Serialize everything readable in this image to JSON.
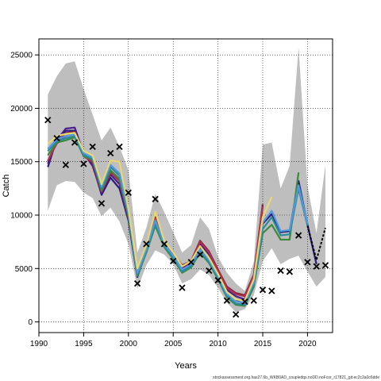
{
  "chart_data": {
    "type": "line",
    "xlabel": "Years",
    "ylabel": "Catch",
    "xlim": [
      1990,
      2022.8
    ],
    "ylim": [
      -1000,
      26500
    ],
    "x_ticks": [
      1990,
      1995,
      2000,
      2005,
      2010,
      2015,
      2020
    ],
    "y_ticks": [
      0,
      5000,
      10000,
      15000,
      20000,
      25000
    ],
    "grid": true,
    "footer": "stockassessment.org.has27.6b_WKB0AD_coupledqs.noDD.noFcor_r17821_git:ec2c2a0c6dde",
    "band": {
      "color": "#bebebe",
      "x": [
        1991,
        1992,
        1993,
        1994,
        1995,
        1996,
        1997,
        1998,
        1999,
        2000,
        2001,
        2002,
        2003,
        2004,
        2005,
        2006,
        2007,
        2008,
        2009,
        2010,
        2011,
        2012,
        2013,
        2014,
        2015,
        2016,
        2017,
        2018,
        2019,
        2020,
        2021,
        2022
      ],
      "upper": [
        21300,
        23000,
        24200,
        24400,
        21800,
        19400,
        17000,
        18200,
        16400,
        14200,
        6500,
        8800,
        12000,
        10300,
        8400,
        6500,
        7200,
        9800,
        8700,
        6100,
        4600,
        3600,
        2900,
        5600,
        16600,
        16800,
        12500,
        14600,
        25700,
        12700,
        8300,
        14700
      ],
      "lower": [
        10400,
        12800,
        13200,
        13100,
        12100,
        11600,
        9900,
        10700,
        9400,
        7300,
        3100,
        5300,
        6700,
        6300,
        5400,
        3600,
        4000,
        4900,
        4400,
        3200,
        1800,
        900,
        1200,
        2500,
        5700,
        6900,
        5400,
        5900,
        6200,
        4700,
        3300,
        4200
      ]
    },
    "series": [
      {
        "color": "#000000",
        "dashed": true,
        "x": [
          2020,
          2021,
          2022
        ],
        "values": [
          9000,
          5800,
          8800
        ]
      },
      {
        "color": "#2a1a7a",
        "x": [
          1991,
          1992,
          1993,
          1994,
          1995,
          1996,
          1997,
          1998,
          1999,
          2000,
          2001,
          2002,
          2003,
          2004,
          2005,
          2006,
          2007,
          2008,
          2009,
          2010,
          2011,
          2012,
          2013,
          2014,
          2015,
          2016,
          2017,
          2018,
          2019,
          2020,
          2021
        ],
        "values": [
          14500,
          17100,
          17900,
          17900,
          15700,
          14800,
          11900,
          13500,
          12500,
          9500,
          4200,
          6700,
          9100,
          7100,
          6000,
          4800,
          5300,
          6900,
          5800,
          4300,
          2700,
          2000,
          1700,
          3700,
          9200,
          10100,
          8400,
          8500,
          13200,
          9100,
          5400
        ]
      },
      {
        "color": "#4a1f8a",
        "x": [
          1991,
          1992,
          1993,
          1994,
          1995,
          1996,
          1997,
          1998,
          1999,
          2000,
          2001,
          2002,
          2003,
          2004,
          2005,
          2006,
          2007,
          2008,
          2009,
          2010,
          2011,
          2012,
          2013,
          2014,
          2015
        ],
        "values": [
          14800,
          17000,
          18100,
          18200,
          15800,
          14600,
          12100,
          13800,
          12900,
          9700,
          4400,
          6900,
          9500,
          7300,
          6200,
          5100,
          5500,
          7300,
          6300,
          4600,
          3000,
          2400,
          2100,
          4100,
          11000
        ]
      },
      {
        "color": "#7a1f3a",
        "x": [
          1991,
          1992,
          1993,
          1994,
          1995,
          1996,
          1997,
          1998,
          1999,
          2000,
          2001,
          2002,
          2003,
          2004,
          2005,
          2006,
          2007,
          2008,
          2009,
          2010,
          2011,
          2012,
          2013,
          2014,
          2015
        ],
        "values": [
          15000,
          16900,
          17700,
          17800,
          15600,
          14900,
          12300,
          14100,
          13300,
          9900,
          4600,
          7000,
          9800,
          7500,
          6400,
          5300,
          5700,
          7600,
          6600,
          4900,
          3300,
          2700,
          2500,
          4400,
          11000
        ]
      },
      {
        "color": "#b03050",
        "x": [
          1991,
          1992,
          1993,
          1994,
          1995,
          1996,
          1997,
          1998,
          1999,
          2000,
          2001,
          2002,
          2003,
          2004,
          2005,
          2006,
          2007,
          2008,
          2009,
          2010,
          2011,
          2012,
          2013,
          2014,
          2015
        ],
        "values": [
          15100,
          16700,
          17400,
          17600,
          15500,
          15000,
          12200,
          14000,
          13200,
          9800,
          4500,
          6800,
          9700,
          7400,
          6300,
          5200,
          5600,
          7500,
          6500,
          4800,
          3200,
          2600,
          2400,
          4300,
          10800
        ]
      },
      {
        "color": "#3a8a3a",
        "x": [
          1991,
          1992,
          1993,
          1994,
          1995,
          1996,
          1997,
          1998,
          1999,
          2000,
          2001,
          2002,
          2003,
          2004,
          2005,
          2006,
          2007,
          2008,
          2009,
          2010,
          2011,
          2012,
          2013,
          2014,
          2015,
          2016,
          2017,
          2018,
          2019
        ],
        "values": [
          15600,
          16800,
          17000,
          17300,
          15500,
          15200,
          12300,
          14200,
          13400,
          9900,
          4300,
          6500,
          9000,
          7000,
          5900,
          4600,
          5100,
          6500,
          5500,
          4000,
          2300,
          1600,
          1500,
          3300,
          8300,
          9100,
          7700,
          7700,
          14000
        ]
      },
      {
        "color": "#2a8a9a",
        "x": [
          1991,
          1992,
          1993,
          1994,
          1995,
          1996,
          1997,
          1998,
          1999,
          2000,
          2001,
          2002,
          2003,
          2004,
          2005,
          2006,
          2007,
          2008,
          2009,
          2010,
          2011,
          2012,
          2013,
          2014,
          2015,
          2016,
          2017,
          2018,
          2019,
          2020
        ],
        "values": [
          16000,
          16900,
          17200,
          17400,
          15600,
          15300,
          12500,
          14500,
          13700,
          10100,
          4400,
          6600,
          9200,
          7100,
          6000,
          4700,
          5200,
          6600,
          5600,
          4100,
          2400,
          1700,
          1600,
          3500,
          8700,
          9800,
          8100,
          8200,
          12500,
          9000
        ]
      },
      {
        "color": "#5599dd",
        "x": [
          1991,
          1992,
          1993,
          1994,
          1995,
          1996,
          1997,
          1998,
          1999,
          2000,
          2001,
          2002,
          2003,
          2004,
          2005,
          2006,
          2007,
          2008,
          2009,
          2010,
          2011,
          2012,
          2013,
          2014,
          2015,
          2016,
          2017,
          2018,
          2019,
          2020
        ],
        "values": [
          16200,
          17100,
          17400,
          17600,
          15800,
          15400,
          12700,
          14700,
          13900,
          10300,
          4600,
          6800,
          9500,
          7300,
          6200,
          4900,
          5400,
          6800,
          5800,
          4300,
          2600,
          1900,
          1800,
          3700,
          9300,
          10400,
          8500,
          8600,
          12800,
          9200
        ]
      },
      {
        "color": "#e8d870",
        "x": [
          1991,
          1992,
          1993,
          1994,
          1995,
          1996,
          1997,
          1998,
          1999,
          2000,
          2001,
          2002,
          2003,
          2004,
          2005,
          2006,
          2007,
          2008,
          2009,
          2010,
          2011,
          2012,
          2013,
          2014,
          2015,
          2016
        ],
        "values": [
          16700,
          17400,
          17600,
          17700,
          16000,
          15600,
          12900,
          15100,
          15000,
          10600,
          5000,
          7200,
          10300,
          7600,
          6500,
          5200,
          5700,
          7100,
          6000,
          4500,
          2800,
          2100,
          2000,
          4000,
          9800,
          11700
        ]
      }
    ],
    "observed": {
      "marker": "x",
      "color": "#000000",
      "x": [
        1991,
        1992,
        1993,
        1994,
        1995,
        1996,
        1997,
        1998,
        1999,
        2000,
        2001,
        2002,
        2003,
        2004,
        2005,
        2006,
        2007,
        2008,
        2009,
        2010,
        2011,
        2012,
        2013,
        2014,
        2015,
        2016,
        2017,
        2018,
        2019,
        2020,
        2021,
        2022
      ],
      "values": [
        18900,
        17200,
        14700,
        16800,
        14800,
        16400,
        11100,
        15800,
        16400,
        12100,
        3600,
        7300,
        11500,
        7300,
        5700,
        3200,
        5600,
        6300,
        4800,
        3900,
        2000,
        700,
        1900,
        2000,
        3000,
        2900,
        4800,
        4700,
        8100,
        5600,
        5200,
        5300
      ]
    }
  }
}
